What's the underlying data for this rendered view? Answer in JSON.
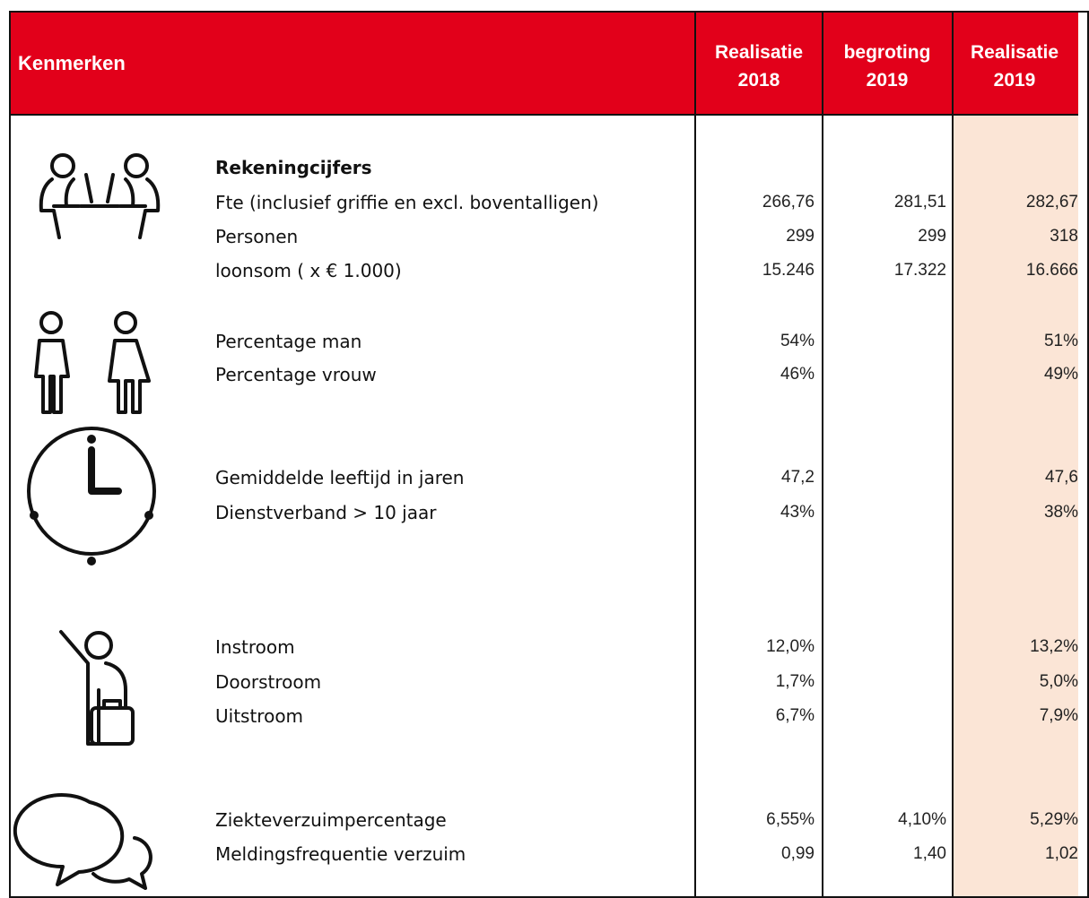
{
  "header": {
    "title": "Kenmerken",
    "columns": [
      [
        "Realisatie",
        "2018"
      ],
      [
        "begroting",
        "2019"
      ],
      [
        "Realisatie",
        "2019"
      ]
    ]
  },
  "groups": [
    {
      "heading": "Rekeningcijfers",
      "rows": [
        {
          "label": "Fte (inclusief griffie en excl. boventalligen)",
          "values": [
            "266,76",
            "281,51",
            "282,67"
          ]
        },
        {
          "label": "Personen",
          "values": [
            "299",
            "299",
            "318"
          ]
        },
        {
          "label": "loonsom ( x € 1.000)",
          "values": [
            "15.246",
            "17.322",
            "16.666"
          ]
        }
      ]
    },
    {
      "rows": [
        {
          "label": "Percentage man",
          "values": [
            "54%",
            null,
            "51%"
          ]
        },
        {
          "label": "Percentage vrouw",
          "values": [
            "46%",
            null,
            "49%"
          ]
        }
      ]
    },
    {
      "rows": [
        {
          "label": "Gemiddelde leeftijd in jaren",
          "values": [
            "47,2",
            null,
            "47,6"
          ]
        },
        {
          "label": "Dienstverband > 10 jaar",
          "values": [
            "43%",
            null,
            "38%"
          ]
        }
      ]
    },
    {
      "rows": [
        {
          "label": "Instroom",
          "values": [
            "12,0%",
            null,
            "13,2%"
          ]
        },
        {
          "label": "Doorstroom",
          "values": [
            "1,7%",
            null,
            "5,0%"
          ]
        },
        {
          "label": "Uitstroom",
          "values": [
            "6,7%",
            null,
            "7,9%"
          ]
        }
      ]
    },
    {
      "rows": [
        {
          "label": "Ziekteverzuimpercentage",
          "values": [
            "6,55%",
            "4,10%",
            "5,29%"
          ]
        },
        {
          "label": "Meldingsfrequentie verzuim",
          "values": [
            "0,99",
            "1,40",
            "1,02"
          ]
        }
      ]
    }
  ]
}
